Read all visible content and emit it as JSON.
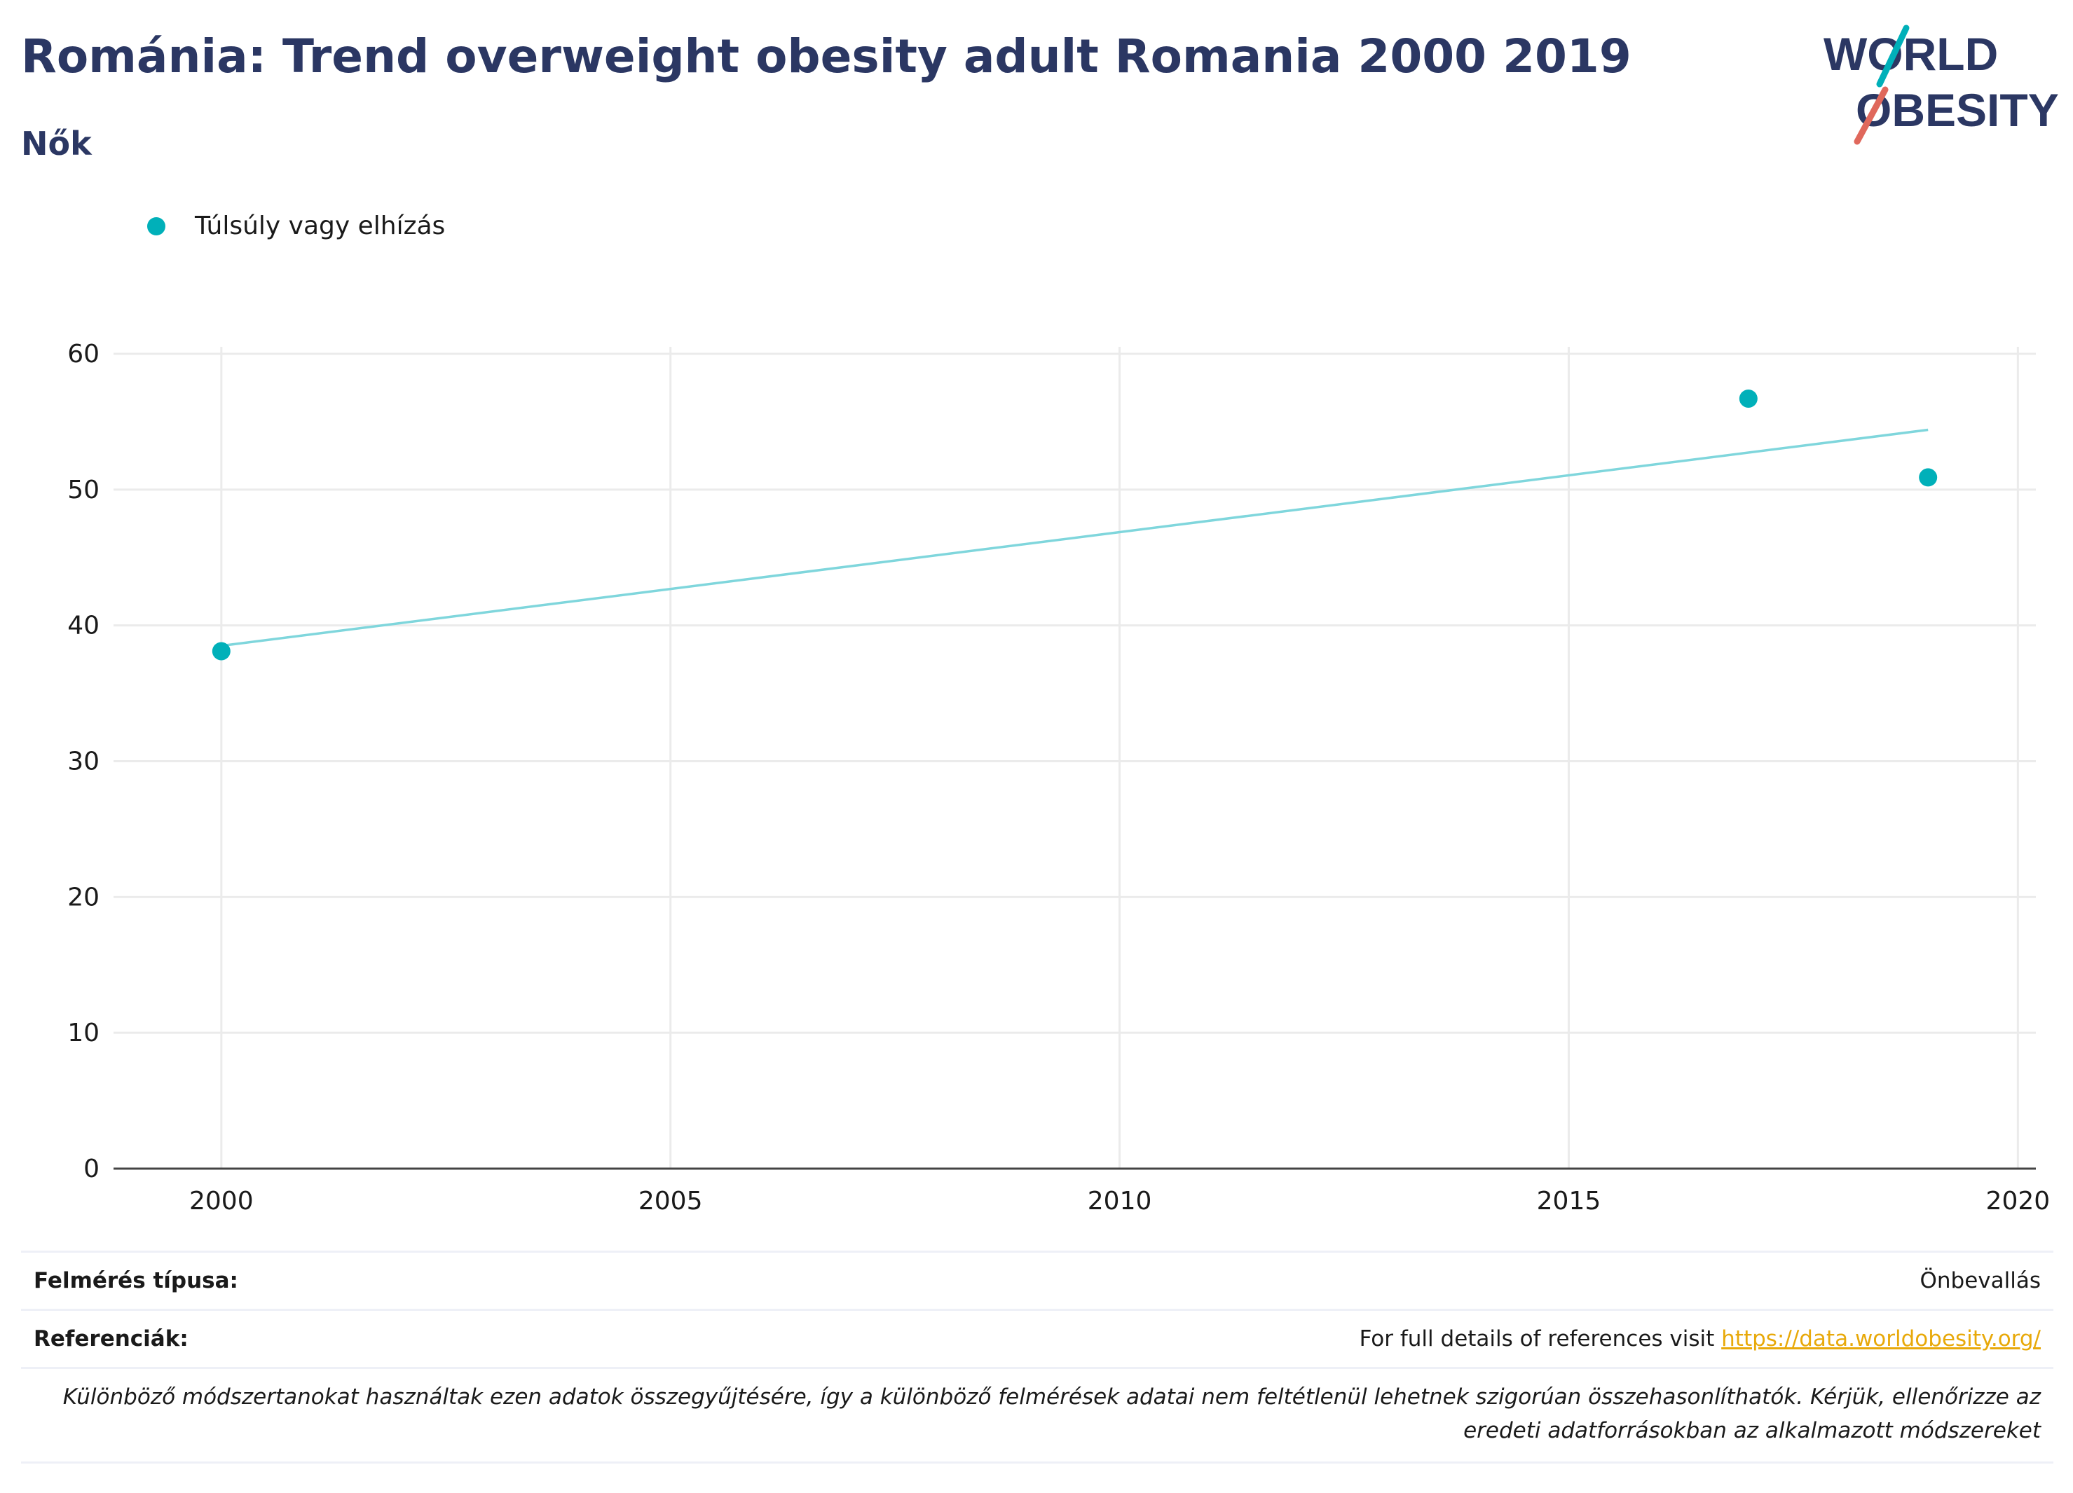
{
  "header": {
    "title": "Románia: Trend overweight obesity adult Romania 2000 2019",
    "subtitle": "Nők"
  },
  "logo": {
    "line1": "WORLD",
    "line2": "OBESITY",
    "text_color": "#2b3763",
    "slash_top_color": "#00b0b9",
    "slash_bottom_color": "#e0685c"
  },
  "legend": {
    "label": "Túlsúly vagy elhízás",
    "marker_color": "#00b0b9"
  },
  "chart_data": {
    "type": "scatter",
    "series": [
      {
        "name": "Túlsúly vagy elhízás",
        "x": [
          2000,
          2017,
          2019
        ],
        "y": [
          38.1,
          56.7,
          50.9
        ],
        "color": "#00b0b9"
      }
    ],
    "trendline": {
      "x": [
        2000,
        2019
      ],
      "y": [
        38.5,
        54.4
      ],
      "color": "#7fd6dc"
    },
    "xlim": [
      1998.8,
      2020.2
    ],
    "ylim": [
      0,
      60
    ],
    "x_ticks": [
      2000,
      2005,
      2010,
      2015,
      2020
    ],
    "y_ticks": [
      0,
      10,
      20,
      30,
      40,
      50,
      60
    ],
    "grid": true
  },
  "footer": {
    "survey_label": "Felmérés típusa:",
    "survey_value": "Önbevallás",
    "references_label": "Referenciák:",
    "references_text": "For full details of references visit ",
    "references_link": "https://data.worldobesity.org/",
    "note": "Különböző módszertanokat használtak ezen adatok összegyűjtésére, így a különböző felmérések adatai nem feltétlenül lehetnek szigorúan összehasonlíthatók. Kérjük, ellenőrizze az eredeti adatforrásokban az alkalmazott módszereket"
  }
}
